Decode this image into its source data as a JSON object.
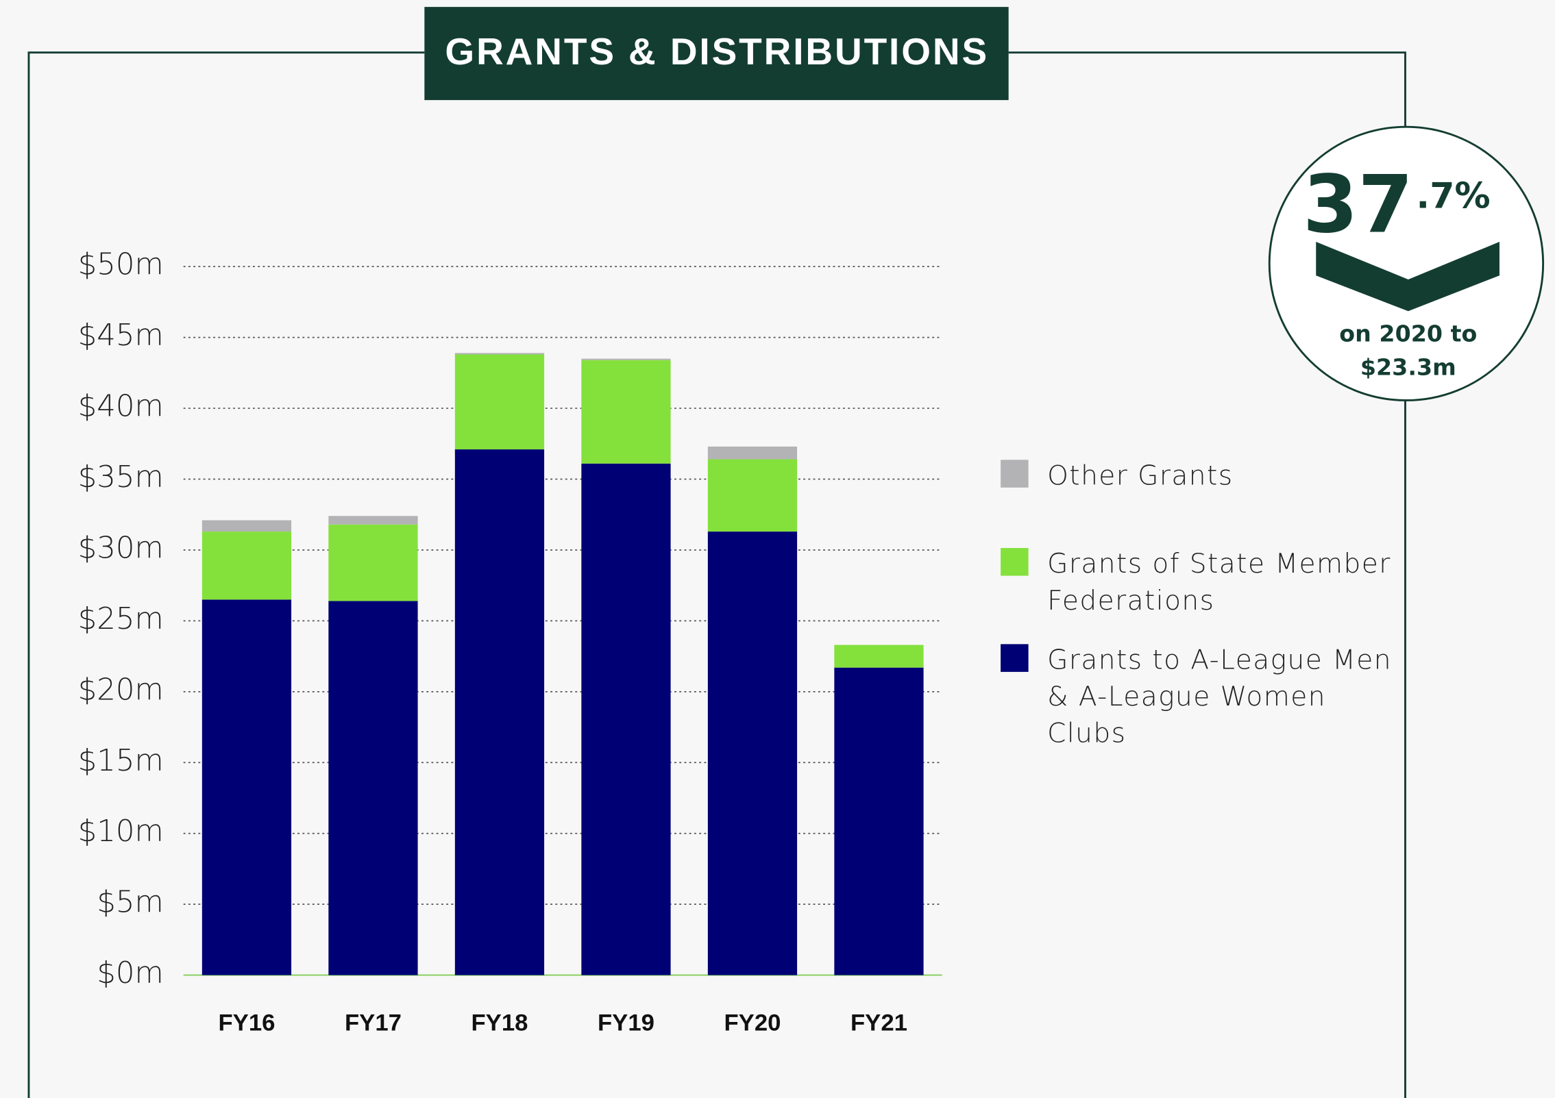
{
  "chart_data": {
    "type": "stacked_bar",
    "title": "GRANTS & DISTRIBUTIONS",
    "categories": [
      "FY16",
      "FY17",
      "FY18",
      "FY19",
      "FY20",
      "FY21"
    ],
    "series": [
      {
        "name": "Grants to A-League Men & A-League Women Clubs",
        "color": "#000075",
        "values": [
          26.5,
          26.4,
          37.1,
          36.1,
          31.3,
          21.7
        ]
      },
      {
        "name": "Grants of State Member Federations",
        "color": "#84e13c",
        "values": [
          4.8,
          5.4,
          6.7,
          7.3,
          5.1,
          1.6
        ]
      },
      {
        "name": "Other Grants",
        "color": "#b3b3b5",
        "values": [
          0.8,
          0.6,
          0.1,
          0.1,
          0.9,
          0
        ]
      }
    ],
    "ylim": [
      0,
      50
    ],
    "yticks": [
      {
        "value": 0,
        "label": "$0m"
      },
      {
        "value": 5,
        "label": "$5m"
      },
      {
        "value": 10,
        "label": "$10m"
      },
      {
        "value": 15,
        "label": "$15m"
      },
      {
        "value": 20,
        "label": "$20m"
      },
      {
        "value": 25,
        "label": "$25m"
      },
      {
        "value": 30,
        "label": "$30m"
      },
      {
        "value": 35,
        "label": "$35m"
      },
      {
        "value": 40,
        "label": "$40m"
      },
      {
        "value": 45,
        "label": "$45m"
      },
      {
        "value": 50,
        "label": "$50m"
      }
    ],
    "grid": true,
    "callout": {
      "big": "37",
      "small": ".7%",
      "line1": "on 2020 to",
      "line2": "$23.3m"
    }
  }
}
